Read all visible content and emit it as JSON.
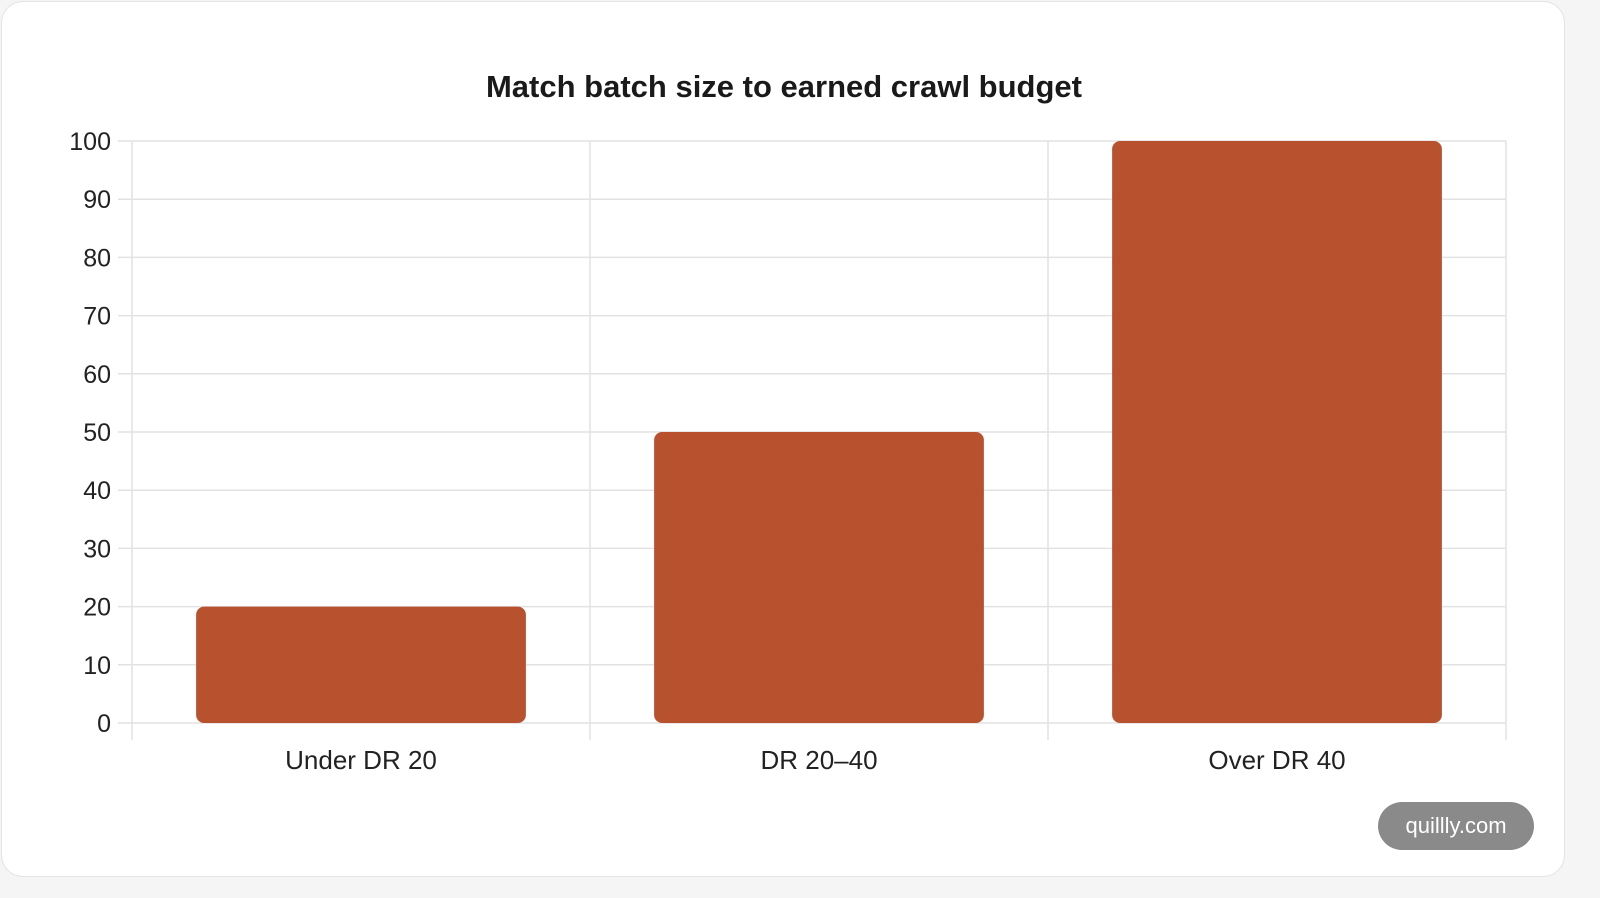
{
  "chart_data": {
    "type": "bar",
    "title": "Match batch size to earned crawl budget",
    "categories": [
      "Under DR 20",
      "DR 20–40",
      "Over DR 40"
    ],
    "values": [
      20,
      50,
      100
    ],
    "ylim": [
      0,
      100
    ],
    "yticks": [
      0,
      10,
      20,
      30,
      40,
      50,
      60,
      70,
      80,
      90,
      100
    ],
    "xlabel": "",
    "ylabel": "",
    "grid": true,
    "legend": "none",
    "bar_color": "#b8512d"
  },
  "watermark": "quillly.com"
}
